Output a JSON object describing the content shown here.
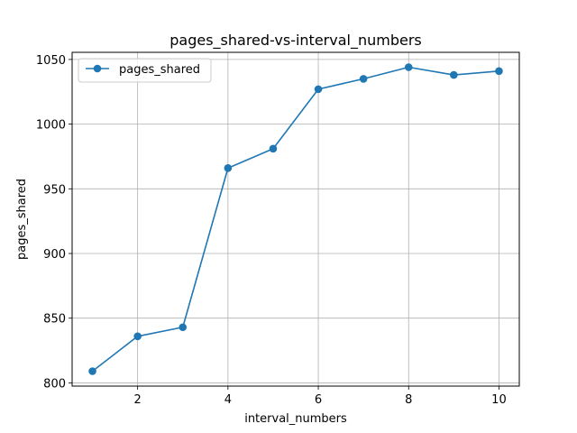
{
  "chart_data": {
    "type": "line",
    "title": "pages_shared-vs-interval_numbers",
    "xlabel": "interval_numbers",
    "ylabel": "pages_shared",
    "xlim": [
      0.55,
      10.45
    ],
    "ylim": [
      797.5,
      1055.5
    ],
    "xticks": [
      2,
      4,
      6,
      8,
      10
    ],
    "xtick_labels": [
      "2",
      "4",
      "6",
      "8",
      "10"
    ],
    "yticks": [
      800,
      850,
      900,
      950,
      1000,
      1050
    ],
    "ytick_labels": [
      "800",
      "850",
      "900",
      "950",
      "1000",
      "1050"
    ],
    "grid": true,
    "legend_position": "top-left",
    "x": [
      1,
      2,
      3,
      4,
      5,
      6,
      7,
      8,
      9,
      10
    ],
    "series": [
      {
        "name": "pages_shared",
        "color": "#1f77b4",
        "marker": "circle",
        "values": [
          809,
          836,
          843,
          966,
          981,
          1027,
          1035,
          1044,
          1038,
          1041
        ]
      }
    ]
  }
}
